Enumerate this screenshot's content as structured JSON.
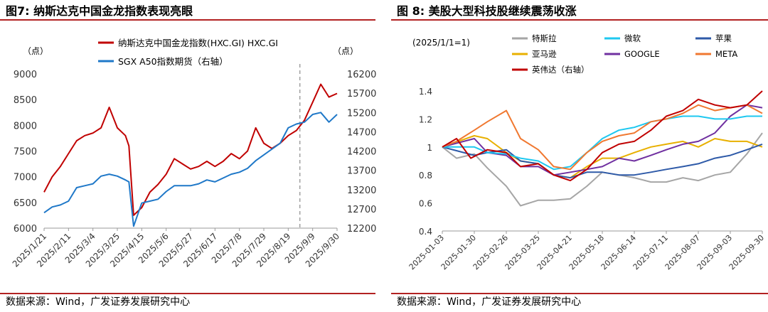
{
  "left": {
    "title": "图7:  纳斯达克中国金龙指数表现亮眼",
    "source": "数据来源：Wind，广发证券发展研究中心",
    "chart_data": {
      "type": "line",
      "left_unit": "（点）",
      "right_unit": "（点）",
      "ylim": [
        6000,
        9000
      ],
      "yticks": [
        6000,
        6500,
        7000,
        7500,
        8000,
        8500,
        9000
      ],
      "ylim_right": [
        12200,
        16200
      ],
      "yticks_right": [
        12200,
        12700,
        13200,
        13700,
        14200,
        14700,
        15200,
        15700,
        16200
      ],
      "x_tick_labels": [
        "2025/1/21",
        "2025/2/11",
        "2025/3/4",
        "2025/3/25",
        "2025/4/15",
        "2025/5/6",
        "2025/5/27",
        "2025/6/17",
        "2025/7/8",
        "2025/7/29",
        "2025/8/19",
        "2025/9/9",
        "2025/9/30"
      ],
      "vertical_marker_date": "2025/8/29",
      "series": [
        {
          "name": "纳斯达克中国金龙指数(HXC.GI) HXC.GI",
          "color": "#c00000",
          "axis": "left",
          "points": [
            [
              "2025/1/21",
              6700
            ],
            [
              "2025/1/28",
              7000
            ],
            [
              "2025/2/4",
              7200
            ],
            [
              "2025/2/11",
              7450
            ],
            [
              "2025/2/18",
              7700
            ],
            [
              "2025/2/25",
              7800
            ],
            [
              "2025/3/4",
              7850
            ],
            [
              "2025/3/11",
              7950
            ],
            [
              "2025/3/18",
              8350
            ],
            [
              "2025/3/25",
              7950
            ],
            [
              "2025/4/1",
              7800
            ],
            [
              "2025/4/4",
              7600
            ],
            [
              "2025/4/8",
              6250
            ],
            [
              "2025/4/15",
              6400
            ],
            [
              "2025/4/22",
              6700
            ],
            [
              "2025/4/29",
              6850
            ],
            [
              "2025/5/6",
              7050
            ],
            [
              "2025/5/13",
              7350
            ],
            [
              "2025/5/20",
              7250
            ],
            [
              "2025/5/27",
              7150
            ],
            [
              "2025/6/3",
              7200
            ],
            [
              "2025/6/10",
              7300
            ],
            [
              "2025/6/17",
              7200
            ],
            [
              "2025/6/24",
              7300
            ],
            [
              "2025/7/1",
              7450
            ],
            [
              "2025/7/8",
              7350
            ],
            [
              "2025/7/15",
              7500
            ],
            [
              "2025/7/22",
              7950
            ],
            [
              "2025/7/29",
              7650
            ],
            [
              "2025/8/5",
              7550
            ],
            [
              "2025/8/12",
              7650
            ],
            [
              "2025/8/19",
              7800
            ],
            [
              "2025/8/26",
              7900
            ],
            [
              "2025/9/2",
              8100
            ],
            [
              "2025/9/9",
              8450
            ],
            [
              "2025/9/16",
              8800
            ],
            [
              "2025/9/23",
              8550
            ],
            [
              "2025/9/30",
              8620
            ]
          ]
        },
        {
          "name": "SGX A50指数期货（右轴）",
          "color": "#1f78c8",
          "axis": "right",
          "points": [
            [
              "2025/1/21",
              12600
            ],
            [
              "2025/1/28",
              12750
            ],
            [
              "2025/2/4",
              12800
            ],
            [
              "2025/2/11",
              12900
            ],
            [
              "2025/2/18",
              13250
            ],
            [
              "2025/2/25",
              13300
            ],
            [
              "2025/3/4",
              13350
            ],
            [
              "2025/3/11",
              13550
            ],
            [
              "2025/3/18",
              13600
            ],
            [
              "2025/3/25",
              13550
            ],
            [
              "2025/4/1",
              13450
            ],
            [
              "2025/4/4",
              13400
            ],
            [
              "2025/4/8",
              12250
            ],
            [
              "2025/4/15",
              12850
            ],
            [
              "2025/4/22",
              12900
            ],
            [
              "2025/4/29",
              12950
            ],
            [
              "2025/5/6",
              13150
            ],
            [
              "2025/5/13",
              13300
            ],
            [
              "2025/5/20",
              13300
            ],
            [
              "2025/5/27",
              13300
            ],
            [
              "2025/6/3",
              13350
            ],
            [
              "2025/6/10",
              13450
            ],
            [
              "2025/6/17",
              13400
            ],
            [
              "2025/6/24",
              13500
            ],
            [
              "2025/7/1",
              13600
            ],
            [
              "2025/7/8",
              13650
            ],
            [
              "2025/7/15",
              13750
            ],
            [
              "2025/7/22",
              13950
            ],
            [
              "2025/7/29",
              14100
            ],
            [
              "2025/8/5",
              14250
            ],
            [
              "2025/8/12",
              14400
            ],
            [
              "2025/8/19",
              14800
            ],
            [
              "2025/8/26",
              14900
            ],
            [
              "2025/9/2",
              14950
            ],
            [
              "2025/9/9",
              15150
            ],
            [
              "2025/9/16",
              15200
            ],
            [
              "2025/9/23",
              14950
            ],
            [
              "2025/9/30",
              15150
            ]
          ]
        }
      ]
    }
  },
  "right": {
    "title": "图 8:  美股大型科技股继续震荡收涨",
    "source": "数据来源：Wind，广发证券发展研究中心",
    "chart_data": {
      "type": "line",
      "unit_label": "(2025/1/1=1)",
      "ylim": [
        0.4,
        1.4
      ],
      "yticks": [
        0.4,
        0.6,
        0.8,
        1,
        1.2,
        1.4
      ],
      "x_tick_labels": [
        "2025-01-03",
        "2025-01-30",
        "2025-02-26",
        "2025-03-25",
        "2025-04-21",
        "2025-05-18",
        "2025-06-14",
        "2025-07-11",
        "2025-08-07",
        "2025-09-03",
        "2025-09-30"
      ],
      "series": [
        {
          "name": "特斯拉",
          "color": "#a6a6a6",
          "points": [
            [
              "2025-01-03",
              1.0
            ],
            [
              "2025-01-15",
              0.92
            ],
            [
              "2025-01-30",
              0.95
            ],
            [
              "2025-02-10",
              0.85
            ],
            [
              "2025-02-26",
              0.72
            ],
            [
              "2025-03-10",
              0.58
            ],
            [
              "2025-03-25",
              0.62
            ],
            [
              "2025-04-07",
              0.62
            ],
            [
              "2025-04-21",
              0.63
            ],
            [
              "2025-05-05",
              0.72
            ],
            [
              "2025-05-18",
              0.82
            ],
            [
              "2025-06-01",
              0.8
            ],
            [
              "2025-06-14",
              0.78
            ],
            [
              "2025-06-28",
              0.75
            ],
            [
              "2025-07-11",
              0.75
            ],
            [
              "2025-07-25",
              0.78
            ],
            [
              "2025-08-07",
              0.76
            ],
            [
              "2025-08-21",
              0.8
            ],
            [
              "2025-09-03",
              0.82
            ],
            [
              "2025-09-17",
              0.95
            ],
            [
              "2025-09-30",
              1.1
            ]
          ]
        },
        {
          "name": "亚马逊",
          "color": "#e8b000",
          "points": [
            [
              "2025-01-03",
              1.0
            ],
            [
              "2025-01-30",
              1.08
            ],
            [
              "2025-02-10",
              1.06
            ],
            [
              "2025-02-26",
              0.96
            ],
            [
              "2025-03-10",
              0.9
            ],
            [
              "2025-03-25",
              0.88
            ],
            [
              "2025-04-07",
              0.8
            ],
            [
              "2025-04-21",
              0.78
            ],
            [
              "2025-05-05",
              0.86
            ],
            [
              "2025-05-18",
              0.92
            ],
            [
              "2025-06-01",
              0.92
            ],
            [
              "2025-06-14",
              0.96
            ],
            [
              "2025-06-28",
              1.0
            ],
            [
              "2025-07-11",
              1.02
            ],
            [
              "2025-07-25",
              1.04
            ],
            [
              "2025-08-07",
              1.0
            ],
            [
              "2025-08-21",
              1.06
            ],
            [
              "2025-09-03",
              1.04
            ],
            [
              "2025-09-17",
              1.04
            ],
            [
              "2025-09-30",
              1.0
            ]
          ]
        },
        {
          "name": "英伟达（右轴）",
          "color": "#c00000",
          "points": [
            [
              "2025-01-03",
              1.0
            ],
            [
              "2025-01-15",
              1.06
            ],
            [
              "2025-01-27",
              0.92
            ],
            [
              "2025-02-10",
              0.98
            ],
            [
              "2025-02-26",
              0.96
            ],
            [
              "2025-03-10",
              0.86
            ],
            [
              "2025-03-25",
              0.88
            ],
            [
              "2025-04-07",
              0.8
            ],
            [
              "2025-04-21",
              0.76
            ],
            [
              "2025-05-05",
              0.84
            ],
            [
              "2025-05-18",
              0.96
            ],
            [
              "2025-06-01",
              1.02
            ],
            [
              "2025-06-14",
              1.04
            ],
            [
              "2025-06-28",
              1.12
            ],
            [
              "2025-07-11",
              1.22
            ],
            [
              "2025-07-25",
              1.26
            ],
            [
              "2025-08-07",
              1.34
            ],
            [
              "2025-08-21",
              1.3
            ],
            [
              "2025-09-03",
              1.28
            ],
            [
              "2025-09-17",
              1.3
            ],
            [
              "2025-09-30",
              1.4
            ]
          ]
        },
        {
          "name": "微软",
          "color": "#1ec8f0",
          "points": [
            [
              "2025-01-03",
              1.0
            ],
            [
              "2025-01-30",
              1.0
            ],
            [
              "2025-02-10",
              0.96
            ],
            [
              "2025-02-26",
              0.95
            ],
            [
              "2025-03-10",
              0.92
            ],
            [
              "2025-03-25",
              0.9
            ],
            [
              "2025-04-07",
              0.84
            ],
            [
              "2025-04-21",
              0.86
            ],
            [
              "2025-05-05",
              0.96
            ],
            [
              "2025-05-18",
              1.06
            ],
            [
              "2025-06-01",
              1.12
            ],
            [
              "2025-06-14",
              1.14
            ],
            [
              "2025-06-28",
              1.18
            ],
            [
              "2025-07-11",
              1.2
            ],
            [
              "2025-07-25",
              1.22
            ],
            [
              "2025-08-07",
              1.22
            ],
            [
              "2025-08-21",
              1.2
            ],
            [
              "2025-09-03",
              1.2
            ],
            [
              "2025-09-17",
              1.22
            ],
            [
              "2025-09-30",
              1.22
            ]
          ]
        },
        {
          "name": "GOOGLE",
          "color": "#7030a0",
          "points": [
            [
              "2025-01-03",
              1.0
            ],
            [
              "2025-01-30",
              1.06
            ],
            [
              "2025-02-10",
              0.96
            ],
            [
              "2025-02-26",
              0.94
            ],
            [
              "2025-03-10",
              0.86
            ],
            [
              "2025-03-25",
              0.86
            ],
            [
              "2025-04-07",
              0.8
            ],
            [
              "2025-04-21",
              0.82
            ],
            [
              "2025-05-05",
              0.84
            ],
            [
              "2025-05-18",
              0.86
            ],
            [
              "2025-06-01",
              0.92
            ],
            [
              "2025-06-14",
              0.9
            ],
            [
              "2025-06-28",
              0.94
            ],
            [
              "2025-07-11",
              0.98
            ],
            [
              "2025-07-25",
              1.02
            ],
            [
              "2025-08-07",
              1.04
            ],
            [
              "2025-08-21",
              1.1
            ],
            [
              "2025-09-03",
              1.22
            ],
            [
              "2025-09-17",
              1.3
            ],
            [
              "2025-09-30",
              1.28
            ]
          ]
        },
        {
          "name": "META",
          "color": "#f07830",
          "points": [
            [
              "2025-01-03",
              1.0
            ],
            [
              "2025-01-15",
              1.04
            ],
            [
              "2025-01-30",
              1.12
            ],
            [
              "2025-02-10",
              1.18
            ],
            [
              "2025-02-26",
              1.26
            ],
            [
              "2025-03-10",
              1.06
            ],
            [
              "2025-03-25",
              0.98
            ],
            [
              "2025-04-07",
              0.86
            ],
            [
              "2025-04-21",
              0.84
            ],
            [
              "2025-05-05",
              0.96
            ],
            [
              "2025-05-18",
              1.04
            ],
            [
              "2025-06-01",
              1.08
            ],
            [
              "2025-06-14",
              1.1
            ],
            [
              "2025-06-28",
              1.18
            ],
            [
              "2025-07-11",
              1.2
            ],
            [
              "2025-07-25",
              1.24
            ],
            [
              "2025-08-07",
              1.3
            ],
            [
              "2025-08-21",
              1.26
            ],
            [
              "2025-09-03",
              1.28
            ],
            [
              "2025-09-17",
              1.3
            ],
            [
              "2025-09-30",
              1.24
            ]
          ]
        },
        {
          "name": "苹果",
          "color": "#2e5aa8",
          "points": [
            [
              "2025-01-03",
              1.0
            ],
            [
              "2025-01-30",
              0.94
            ],
            [
              "2025-02-10",
              0.96
            ],
            [
              "2025-02-26",
              0.98
            ],
            [
              "2025-03-10",
              0.9
            ],
            [
              "2025-03-25",
              0.88
            ],
            [
              "2025-04-07",
              0.8
            ],
            [
              "2025-04-21",
              0.78
            ],
            [
              "2025-05-05",
              0.82
            ],
            [
              "2025-05-18",
              0.82
            ],
            [
              "2025-06-01",
              0.8
            ],
            [
              "2025-06-14",
              0.8
            ],
            [
              "2025-06-28",
              0.82
            ],
            [
              "2025-07-11",
              0.84
            ],
            [
              "2025-07-25",
              0.86
            ],
            [
              "2025-08-07",
              0.88
            ],
            [
              "2025-08-21",
              0.92
            ],
            [
              "2025-09-03",
              0.94
            ],
            [
              "2025-09-17",
              0.98
            ],
            [
              "2025-09-30",
              1.02
            ]
          ]
        }
      ],
      "legend_order": [
        "特斯拉",
        "微软",
        "苹果",
        "亚马逊",
        "GOOGLE",
        "META",
        "英伟达（右轴）"
      ]
    }
  }
}
